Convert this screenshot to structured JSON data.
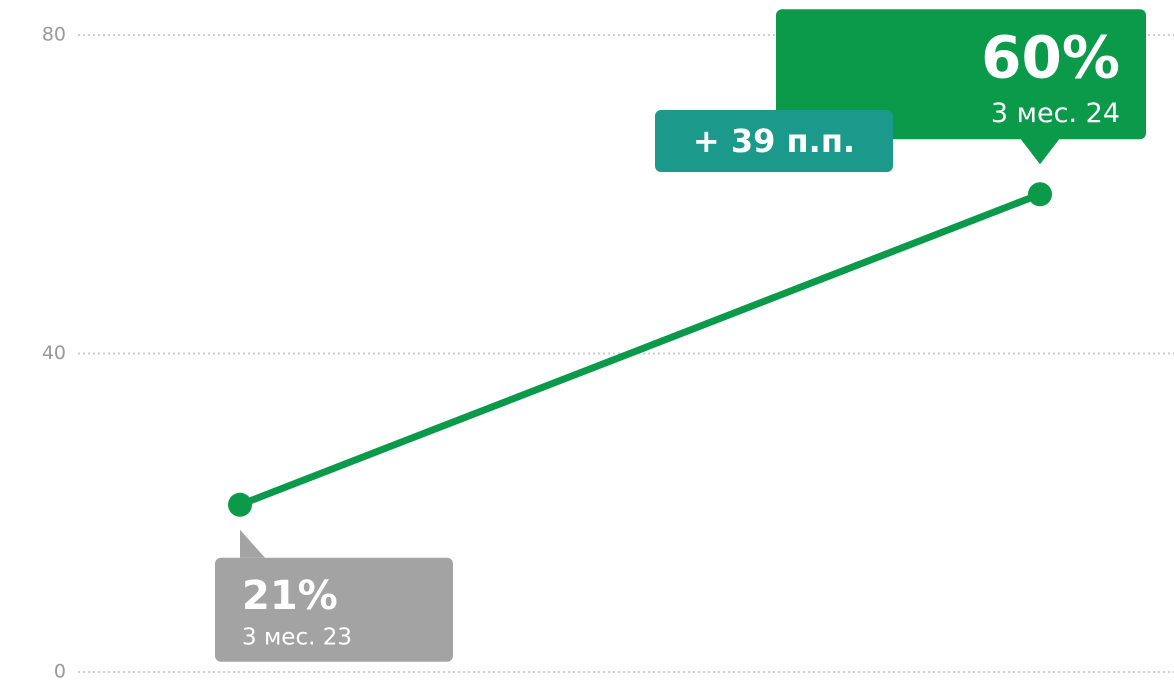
{
  "chart_data": {
    "type": "line",
    "categories": [
      "3 мес. 23",
      "3 мес. 24"
    ],
    "values": [
      21,
      60
    ],
    "value_labels": [
      "21%",
      "60%"
    ],
    "color": "#0a9a4a",
    "label_colors": [
      "#a3a3a3",
      "#0a9a4a"
    ],
    "annotation": {
      "text": "+ 39 п.п.",
      "color": "#1b9a8c"
    },
    "ylim": [
      0,
      80
    ],
    "yticks": [
      0,
      40,
      80
    ],
    "grid": true
  }
}
